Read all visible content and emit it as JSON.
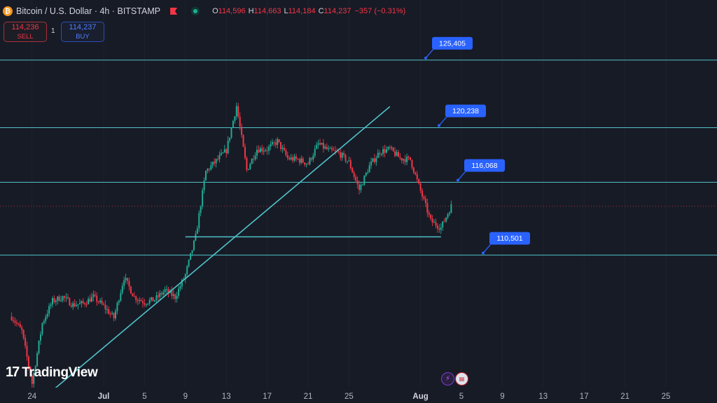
{
  "header": {
    "symbol_title": "Bitcoin / U.S. Dollar · 4h · BITSTAMP",
    "icon_letter": "₿",
    "ohlc": [
      {
        "key": "O",
        "value": "114,596"
      },
      {
        "key": "H",
        "value": "114,663"
      },
      {
        "key": "L",
        "value": "114,184"
      },
      {
        "key": "C",
        "value": "114,237"
      }
    ],
    "change": "−357 (−0.31%)"
  },
  "trade": {
    "sell_price": "114,236",
    "sell_label": "SELL",
    "quantity": "1",
    "buy_price": "114,237",
    "buy_label": "BUY"
  },
  "branding": {
    "logo_mark": "17",
    "logo_text": "TradingView"
  },
  "colors": {
    "background": "#171b26",
    "level_line": "#4fc3c9",
    "up_candle": "#22ab94",
    "down_candle": "#f23645",
    "callout": "#2962ff"
  },
  "event_icons": [
    "lightning-icon",
    "us-flag-icon"
  ],
  "chart_data": {
    "type": "candlestick",
    "timeframe": "4h",
    "x_tick_labels": [
      "24",
      "Jul",
      "5",
      "9",
      "13",
      "17",
      "21",
      "25",
      "Aug",
      "5",
      "9",
      "13",
      "17",
      "21",
      "25"
    ],
    "x_ticks": [
      "Jun 24",
      "Jul 1",
      "Jul 5",
      "Jul 9",
      "Jul 13",
      "Jul 17",
      "Jul 21",
      "Jul 25",
      "Aug 1",
      "Aug 5",
      "Aug 9",
      "Aug 13",
      "Aug 17",
      "Aug 21",
      "Aug 25"
    ],
    "y_range": [
      99200,
      130000
    ],
    "last_close": 114237,
    "horizontal_levels": [
      {
        "label": "125,405",
        "value": 125405
      },
      {
        "label": "120,238",
        "value": 120238
      },
      {
        "label": "116,068",
        "value": 116068
      },
      {
        "label": "110,501",
        "value": 110501
      }
    ],
    "support_segment": {
      "from": "Jul 9",
      "to": "Aug 3",
      "value": 111900
    },
    "trendline": {
      "from": [
        "Jun 25",
        99500
      ],
      "to": [
        "Jul 29",
        121850
      ]
    },
    "price_path": [
      [
        "Jun 22",
        105800
      ],
      [
        "Jun 23",
        104700
      ],
      [
        "Jun 24",
        100700
      ],
      [
        "Jun 25",
        105300
      ],
      [
        "Jun 26",
        107000
      ],
      [
        "Jun 27",
        107300
      ],
      [
        "Jun 28",
        106700
      ],
      [
        "Jun 29",
        106800
      ],
      [
        "Jun 30",
        107300
      ],
      [
        "Jul 1",
        106600
      ],
      [
        "Jul 2",
        105700
      ],
      [
        "Jul 3",
        108800
      ],
      [
        "Jul 4",
        107300
      ],
      [
        "Jul 5",
        106900
      ],
      [
        "Jul 6",
        107100
      ],
      [
        "Jul 7",
        107800
      ],
      [
        "Jul 8",
        107300
      ],
      [
        "Jul 9",
        109000
      ],
      [
        "Jul 10",
        111900
      ],
      [
        "Jul 11",
        116900
      ],
      [
        "Jul 12",
        117700
      ],
      [
        "Jul 13",
        118500
      ],
      [
        "Jul 14",
        121900
      ],
      [
        "Jul 15",
        117000
      ],
      [
        "Jul 16",
        118600
      ],
      [
        "Jul 17",
        118600
      ],
      [
        "Jul 18",
        119200
      ],
      [
        "Jul 19",
        117900
      ],
      [
        "Jul 20",
        117800
      ],
      [
        "Jul 21",
        117500
      ],
      [
        "Jul 22",
        119000
      ],
      [
        "Jul 23",
        118500
      ],
      [
        "Jul 24",
        118300
      ],
      [
        "Jul 25",
        117600
      ],
      [
        "Jul 26",
        115500
      ],
      [
        "Jul 27",
        117300
      ],
      [
        "Jul 28",
        118400
      ],
      [
        "Jul 29",
        118600
      ],
      [
        "Jul 30",
        117900
      ],
      [
        "Jul 31",
        117800
      ],
      [
        "Aug 1",
        115400
      ],
      [
        "Aug 2",
        113100
      ],
      [
        "Aug 3",
        112600
      ],
      [
        "Aug 4",
        114237
      ]
    ]
  }
}
